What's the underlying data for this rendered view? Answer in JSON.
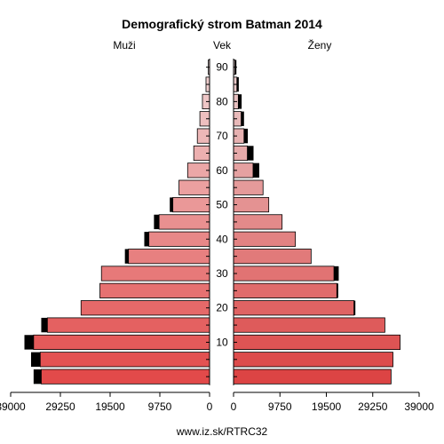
{
  "chart_data": {
    "type": "population-pyramid",
    "title": "Demografický strom Batman 2014",
    "left_label": "Muži",
    "center_label": "Vek",
    "right_label": "Ženy",
    "footer": "www.iz.sk/RTRC32",
    "xlim": [
      0,
      39000
    ],
    "x_ticks": [
      39000,
      29250,
      19500,
      9750,
      0
    ],
    "x_tick_labels_left": [
      "39000",
      "29250",
      "19500",
      "9750",
      "0"
    ],
    "x_tick_labels_right": [
      "0",
      "9750",
      "19500",
      "29250",
      "39000"
    ],
    "age_groups": [
      "0-4",
      "5-9",
      "10-14",
      "15-19",
      "20-24",
      "25-29",
      "30-34",
      "35-39",
      "40-44",
      "45-49",
      "50-54",
      "55-59",
      "60-64",
      "65-69",
      "70-74",
      "75-79",
      "80-84",
      "85-89",
      "90+"
    ],
    "age_tick_labels": [
      "10",
      "20",
      "30",
      "40",
      "50",
      "60",
      "70",
      "80",
      "90"
    ],
    "males_total": [
      34500,
      35000,
      36300,
      33000,
      25200,
      21500,
      21200,
      16600,
      12800,
      10900,
      7800,
      6000,
      4300,
      3100,
      2400,
      1900,
      1400,
      700,
      250
    ],
    "males_extra": [
      1500,
      1800,
      1800,
      1200,
      0,
      0,
      0,
      700,
      900,
      1000,
      600,
      0,
      0,
      0,
      0,
      0,
      0,
      0,
      0
    ],
    "females_total": [
      33100,
      33500,
      35000,
      31800,
      25600,
      22000,
      22100,
      16300,
      13000,
      10200,
      7400,
      6200,
      5400,
      4200,
      3000,
      2200,
      1700,
      1100,
      600
    ],
    "females_extra": [
      0,
      0,
      0,
      0,
      300,
      300,
      1000,
      0,
      0,
      0,
      0,
      0,
      1300,
      1300,
      800,
      600,
      700,
      400,
      300
    ]
  }
}
